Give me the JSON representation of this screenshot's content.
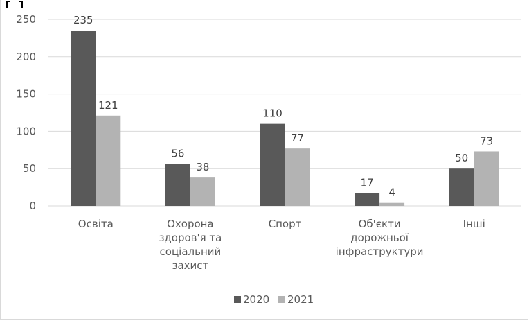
{
  "chart_data": {
    "type": "bar",
    "categories": [
      [
        "Освіта"
      ],
      [
        "Охорона",
        "здоров'я та",
        "соціальний",
        "захист"
      ],
      [
        "Спорт"
      ],
      [
        "Об'єкти",
        "дорожньої",
        "інфраструктури"
      ],
      [
        "Інші"
      ]
    ],
    "series": [
      {
        "name": "2020",
        "values": [
          235,
          56,
          110,
          17,
          50
        ],
        "color": "#595959"
      },
      {
        "name": "2021",
        "values": [
          121,
          38,
          77,
          4,
          73
        ],
        "color": "#b3b3b3"
      }
    ],
    "yticks": [
      0,
      50,
      100,
      150,
      200,
      250
    ],
    "ylim": [
      0,
      250
    ],
    "grid": true,
    "legend_position": "bottom"
  }
}
